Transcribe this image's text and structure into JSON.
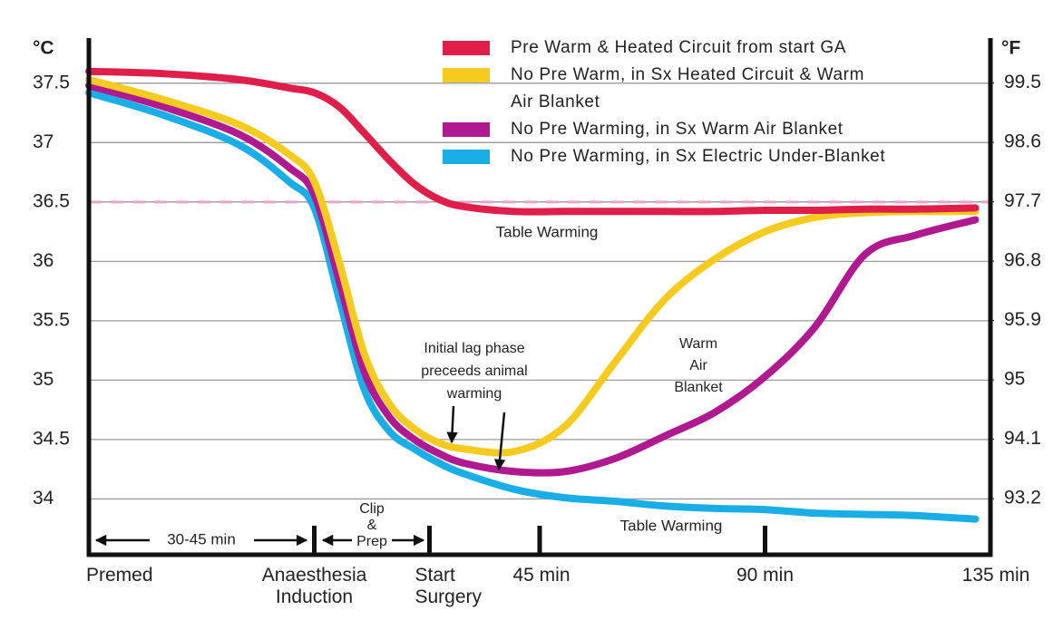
{
  "chart_data": {
    "type": "line",
    "y_unit": "°C",
    "y2_unit": "°F",
    "x": [
      -45,
      -30,
      -15,
      -5,
      0,
      5,
      10,
      15,
      20,
      25,
      30,
      40,
      50,
      60,
      70,
      80,
      90,
      100,
      110,
      120,
      132
    ],
    "xlim": [
      -45,
      135
    ],
    "xticks": [
      {
        "value": -45,
        "label": "Premed"
      },
      {
        "value": 0,
        "label": "Anaesthesia Induction"
      },
      {
        "value": 23,
        "label": "Start Surgery"
      },
      {
        "value": 45,
        "label": "45 min"
      },
      {
        "value": 90,
        "label": "90 min"
      },
      {
        "value": 135,
        "label": "135 min"
      }
    ],
    "ylim": [
      33.53,
      37.88
    ],
    "yticks": [
      34,
      34.5,
      35,
      35.5,
      36,
      36.5,
      37,
      37.5
    ],
    "y2lim": [
      92.35,
      100.18
    ],
    "y2ticks": [
      93.2,
      94.1,
      95,
      95.9,
      96.8,
      97.7,
      98.6,
      99.5
    ],
    "grid": true,
    "reference_line": {
      "value": 36.5,
      "color": "#eaa3c8"
    },
    "series": [
      {
        "name": "Pre Warm & Heated Circuit from start GA",
        "color": "#df1f4a",
        "values": [
          37.6,
          37.58,
          37.53,
          37.46,
          37.42,
          37.3,
          37.08,
          36.85,
          36.65,
          36.52,
          36.46,
          36.42,
          36.42,
          36.42,
          36.42,
          36.42,
          36.43,
          36.43,
          36.44,
          36.44,
          36.45
        ]
      },
      {
        "name": "No Pre Warm, in Sx Heated Circuit & Warm Air Blanket",
        "color": "#f6cb1f",
        "values": [
          37.53,
          37.36,
          37.15,
          36.9,
          36.67,
          35.99,
          35.22,
          34.8,
          34.59,
          34.47,
          34.42,
          34.4,
          34.61,
          35.15,
          35.68,
          36.02,
          36.25,
          36.37,
          36.41,
          36.42,
          36.42
        ]
      },
      {
        "name": "No Pre Warming, in Sx Warm Air Blanket",
        "color": "#b0198f",
        "values": [
          37.48,
          37.3,
          37.07,
          36.79,
          36.56,
          35.83,
          35.07,
          34.69,
          34.5,
          34.38,
          34.3,
          34.23,
          34.23,
          34.34,
          34.53,
          34.73,
          35.03,
          35.45,
          36.06,
          36.22,
          36.35
        ]
      },
      {
        "name": "No Pre Warming, in Sx Electric Under-Blanket",
        "color": "#1aaee6",
        "values": [
          37.42,
          37.23,
          36.98,
          36.67,
          36.45,
          35.68,
          34.92,
          34.57,
          34.42,
          34.3,
          34.21,
          34.08,
          34.01,
          33.98,
          33.94,
          33.92,
          33.91,
          33.88,
          33.87,
          33.86,
          33.83
        ]
      }
    ],
    "annotations": [
      {
        "lines": [
          "Table Warming"
        ]
      },
      {
        "lines": [
          "Table Warming"
        ]
      },
      {
        "lines": [
          "Initial lag phase",
          "preceeds animal",
          "warming"
        ]
      },
      {
        "lines": [
          "Warm",
          "Air",
          "Blanket"
        ]
      }
    ],
    "phases": [
      {
        "lines": [
          "30-45 min"
        ]
      },
      {
        "lines": [
          "Clip",
          "&",
          "Prep"
        ]
      }
    ]
  }
}
